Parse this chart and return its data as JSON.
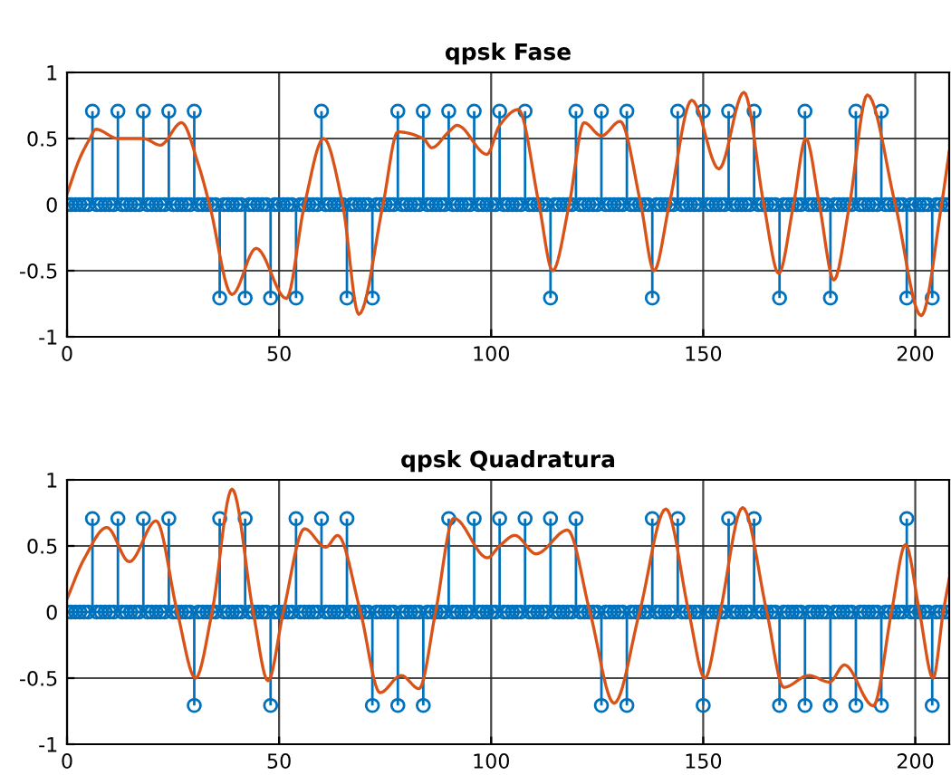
{
  "chart_data": [
    {
      "type": "lollipop",
      "title": "qpsk Fase",
      "ref_lines": [
        {
          "axis": "y",
          "value": 0,
          "color": "#0072bd"
        }
      ],
      "xlim": [
        0,
        208
      ],
      "ylim": [
        -1,
        1
      ],
      "xticks": [
        0,
        50,
        100,
        150,
        200
      ],
      "yticks": [
        -1,
        -0.5,
        0,
        0.5,
        1
      ],
      "grid": true,
      "legend": false,
      "x": [
        0,
        1,
        2,
        3,
        4,
        5,
        6,
        7,
        8,
        9,
        10,
        11,
        12,
        13,
        14,
        15,
        16,
        17,
        18,
        19,
        20,
        21,
        22,
        23,
        24,
        25,
        26,
        27,
        28,
        29,
        30,
        31,
        32,
        33,
        34,
        35,
        36,
        37,
        38,
        39,
        40,
        41,
        42,
        43,
        44,
        45,
        46,
        47,
        48,
        49,
        50,
        51,
        52,
        53,
        54,
        55,
        56,
        57,
        58,
        59,
        60,
        61,
        62,
        63,
        64,
        65,
        66,
        67,
        68,
        69,
        70,
        71,
        72,
        73,
        74,
        75,
        76,
        77,
        78,
        79,
        80,
        81,
        82,
        83,
        84,
        85,
        86,
        87,
        88,
        89,
        90,
        91,
        92,
        93,
        94,
        95,
        96,
        97,
        98,
        99,
        100,
        101,
        102,
        103,
        104,
        105,
        106,
        107,
        108,
        109,
        110,
        111,
        112,
        113,
        114,
        115,
        116,
        117,
        118,
        119,
        120,
        121,
        122,
        123,
        124,
        125,
        126,
        127,
        128,
        129,
        130,
        131,
        132,
        133,
        134,
        135,
        136,
        137,
        138,
        139,
        140,
        141,
        142,
        143,
        144,
        145,
        146,
        147,
        148,
        149,
        150,
        151,
        152,
        153,
        154,
        155,
        156,
        157,
        158,
        159,
        160,
        161,
        162,
        163,
        164,
        165,
        166,
        167,
        168,
        169,
        170,
        171,
        172,
        173,
        174,
        175,
        176,
        177,
        178,
        179,
        180,
        181,
        182,
        183,
        184,
        185,
        186,
        187,
        188,
        189,
        190,
        191,
        192,
        193,
        194,
        195,
        196,
        197,
        198,
        199,
        200,
        201,
        202,
        203,
        204,
        205,
        206,
        207,
        208
      ],
      "series": [
        {
          "color": "#0072bd",
          "marker": "circle",
          "values": [
            0,
            0,
            0,
            0,
            0,
            0,
            0.707,
            0,
            0,
            0,
            0,
            0,
            0.707,
            0,
            0,
            0,
            0,
            0,
            0.707,
            0,
            0,
            0,
            0,
            0,
            0.707,
            0,
            0,
            0,
            0,
            0,
            0.707,
            0,
            0,
            0,
            0,
            0,
            -0.707,
            0,
            0,
            0,
            0,
            0,
            -0.707,
            0,
            0,
            0,
            0,
            0,
            -0.707,
            0,
            0,
            0,
            0,
            0,
            -0.707,
            0,
            0,
            0,
            0,
            0,
            0.707,
            0,
            0,
            0,
            0,
            0,
            -0.707,
            0,
            0,
            0,
            0,
            0,
            -0.707,
            0,
            0,
            0,
            0,
            0,
            0.707,
            0,
            0,
            0,
            0,
            0,
            0.707,
            0,
            0,
            0,
            0,
            0,
            0.707,
            0,
            0,
            0,
            0,
            0,
            0.707,
            0,
            0,
            0,
            0,
            0,
            0.707,
            0,
            0,
            0,
            0,
            0,
            0.707,
            0,
            0,
            0,
            0,
            0,
            -0.707,
            0,
            0,
            0,
            0,
            0,
            0.707,
            0,
            0,
            0,
            0,
            0,
            0.707,
            0,
            0,
            0,
            0,
            0,
            0.707,
            0,
            0,
            0,
            0,
            0,
            -0.707,
            0,
            0,
            0,
            0,
            0,
            0.707,
            0,
            0,
            0,
            0,
            0,
            0.707,
            0,
            0,
            0,
            0,
            0,
            0.707,
            0,
            0,
            0,
            0,
            0,
            0.707,
            0,
            0,
            0,
            0,
            0,
            -0.707,
            0,
            0,
            0,
            0,
            0,
            0.707,
            0,
            0,
            0,
            0,
            0,
            -0.707,
            0,
            0,
            0,
            0,
            0,
            0.707,
            0,
            0,
            0,
            0,
            0,
            0.707,
            0,
            0,
            0,
            0,
            0,
            -0.707,
            0,
            0,
            0,
            0,
            0,
            -0.707,
            0,
            0,
            0,
            0
          ]
        },
        {
          "type": "line",
          "color": "#d95319",
          "x": [
            0,
            3,
            5.4,
            6.8,
            12,
            18,
            22,
            27,
            31,
            33.6,
            38.9,
            44.6,
            51.7,
            56,
            60.5,
            65,
            68.8,
            74.5,
            78,
            84,
            86,
            90,
            92,
            99,
            102,
            106.4,
            111.3,
            114.5,
            118.4,
            121.9,
            126,
            130.4,
            135.3,
            138.4,
            142,
            147.3,
            153.7,
            159.6,
            164.3,
            167.8,
            171.3,
            174.2,
            177.4,
            180.8,
            184.5,
            188.7,
            195.3,
            201.4,
            206.2,
            208
          ],
          "values": [
            0.08,
            0.35,
            0.5,
            0.57,
            0.5,
            0.5,
            0.45,
            0.62,
            0.3,
            0,
            -0.68,
            -0.33,
            -0.71,
            0,
            0.5,
            0,
            -0.83,
            0,
            0.55,
            0.5,
            0.43,
            0.55,
            0.6,
            0.38,
            0.6,
            0.72,
            0,
            -0.5,
            0,
            0.62,
            0.52,
            0.63,
            0,
            -0.5,
            0,
            0.79,
            0.27,
            0.85,
            0,
            -0.52,
            0,
            0.5,
            0,
            -0.57,
            0,
            0.83,
            0,
            -0.84,
            0,
            0.4
          ]
        }
      ]
    },
    {
      "type": "lollipop",
      "title": "qpsk Quadratura",
      "ref_lines": [
        {
          "axis": "y",
          "value": 0,
          "color": "#0072bd"
        }
      ],
      "xlim": [
        0,
        208
      ],
      "ylim": [
        -1,
        1
      ],
      "xticks": [
        0,
        50,
        100,
        150,
        200
      ],
      "yticks": [
        -1,
        -0.5,
        0,
        0.5,
        1
      ],
      "grid": true,
      "legend": false,
      "x": [
        0,
        1,
        2,
        3,
        4,
        5,
        6,
        7,
        8,
        9,
        10,
        11,
        12,
        13,
        14,
        15,
        16,
        17,
        18,
        19,
        20,
        21,
        22,
        23,
        24,
        25,
        26,
        27,
        28,
        29,
        30,
        31,
        32,
        33,
        34,
        35,
        36,
        37,
        38,
        39,
        40,
        41,
        42,
        43,
        44,
        45,
        46,
        47,
        48,
        49,
        50,
        51,
        52,
        53,
        54,
        55,
        56,
        57,
        58,
        59,
        60,
        61,
        62,
        63,
        64,
        65,
        66,
        67,
        68,
        69,
        70,
        71,
        72,
        73,
        74,
        75,
        76,
        77,
        78,
        79,
        80,
        81,
        82,
        83,
        84,
        85,
        86,
        87,
        88,
        89,
        90,
        91,
        92,
        93,
        94,
        95,
        96,
        97,
        98,
        99,
        100,
        101,
        102,
        103,
        104,
        105,
        106,
        107,
        108,
        109,
        110,
        111,
        112,
        113,
        114,
        115,
        116,
        117,
        118,
        119,
        120,
        121,
        122,
        123,
        124,
        125,
        126,
        127,
        128,
        129,
        130,
        131,
        132,
        133,
        134,
        135,
        136,
        137,
        138,
        139,
        140,
        141,
        142,
        143,
        144,
        145,
        146,
        147,
        148,
        149,
        150,
        151,
        152,
        153,
        154,
        155,
        156,
        157,
        158,
        159,
        160,
        161,
        162,
        163,
        164,
        165,
        166,
        167,
        168,
        169,
        170,
        171,
        172,
        173,
        174,
        175,
        176,
        177,
        178,
        179,
        180,
        181,
        182,
        183,
        184,
        185,
        186,
        187,
        188,
        189,
        190,
        191,
        192,
        193,
        194,
        195,
        196,
        197,
        198,
        199,
        200,
        201,
        202,
        203,
        204,
        205,
        206,
        207,
        208
      ],
      "series": [
        {
          "color": "#0072bd",
          "marker": "circle",
          "values": [
            0,
            0,
            0,
            0,
            0,
            0,
            0.707,
            0,
            0,
            0,
            0,
            0,
            0.707,
            0,
            0,
            0,
            0,
            0,
            0.707,
            0,
            0,
            0,
            0,
            0,
            0.707,
            0,
            0,
            0,
            0,
            0,
            -0.707,
            0,
            0,
            0,
            0,
            0,
            0.707,
            0,
            0,
            0,
            0,
            0,
            0.707,
            0,
            0,
            0,
            0,
            0,
            -0.707,
            0,
            0,
            0,
            0,
            0,
            0.707,
            0,
            0,
            0,
            0,
            0,
            0.707,
            0,
            0,
            0,
            0,
            0,
            0.707,
            0,
            0,
            0,
            0,
            0,
            -0.707,
            0,
            0,
            0,
            0,
            0,
            -0.707,
            0,
            0,
            0,
            0,
            0,
            -0.707,
            0,
            0,
            0,
            0,
            0,
            0.707,
            0,
            0,
            0,
            0,
            0,
            0.707,
            0,
            0,
            0,
            0,
            0,
            0.707,
            0,
            0,
            0,
            0,
            0,
            0.707,
            0,
            0,
            0,
            0,
            0,
            0.707,
            0,
            0,
            0,
            0,
            0,
            0.707,
            0,
            0,
            0,
            0,
            0,
            -0.707,
            0,
            0,
            0,
            0,
            0,
            -0.707,
            0,
            0,
            0,
            0,
            0,
            0.707,
            0,
            0,
            0,
            0,
            0,
            0.707,
            0,
            0,
            0,
            0,
            0,
            -0.707,
            0,
            0,
            0,
            0,
            0,
            0.707,
            0,
            0,
            0,
            0,
            0,
            0.707,
            0,
            0,
            0,
            0,
            0,
            -0.707,
            0,
            0,
            0,
            0,
            0,
            -0.707,
            0,
            0,
            0,
            0,
            0,
            -0.707,
            0,
            0,
            0,
            0,
            0,
            -0.707,
            0,
            0,
            0,
            0,
            0,
            -0.707,
            0,
            0,
            0,
            0,
            0,
            0.707,
            0,
            0,
            0,
            0,
            0,
            -0.707,
            0,
            0,
            0,
            0
          ]
        },
        {
          "type": "line",
          "color": "#d95319",
          "x": [
            0,
            4,
            9.4,
            14.7,
            21,
            26,
            30.3,
            34.2,
            38.9,
            43.9,
            47.4,
            51,
            56,
            61,
            63.8,
            69.2,
            73.8,
            78.8,
            83,
            86.9,
            91.2,
            99.1,
            102,
            105.6,
            110.6,
            118,
            123.3,
            129,
            135,
            141.2,
            146.6,
            150.4,
            154,
            159.3,
            165,
            169,
            174.9,
            179.8,
            183.3,
            190.1,
            194.4,
            197.7,
            201,
            204.2,
            206.6,
            208
          ],
          "values": [
            0.1,
            0.4,
            0.64,
            0.38,
            0.69,
            0,
            -0.5,
            0,
            0.93,
            0,
            -0.52,
            0,
            0.63,
            0.49,
            0.58,
            0,
            -0.61,
            -0.48,
            -0.58,
            0,
            0.71,
            0.41,
            0.5,
            0.58,
            0.44,
            0.62,
            0,
            -0.69,
            0,
            0.78,
            0,
            -0.5,
            0,
            0.79,
            0,
            -0.57,
            -0.48,
            -0.53,
            -0.4,
            -0.71,
            0,
            0.51,
            0,
            -0.5,
            0,
            0.25
          ]
        }
      ]
    }
  ]
}
